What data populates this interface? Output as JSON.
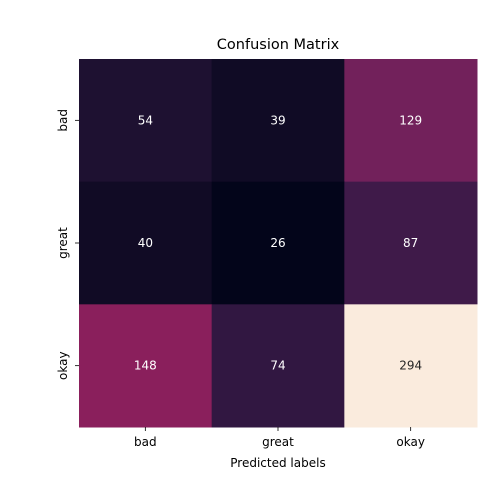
{
  "chart_data": {
    "type": "heatmap",
    "title": "Confusion Matrix",
    "xlabel": "Predicted labels",
    "ylabel": "",
    "x_categories": [
      "bad",
      "great",
      "okay"
    ],
    "y_categories": [
      "bad",
      "great",
      "okay"
    ],
    "values": [
      [
        54,
        39,
        129
      ],
      [
        40,
        26,
        87
      ],
      [
        148,
        74,
        294
      ]
    ],
    "value_range": [
      26,
      294
    ],
    "colormap": "rocket",
    "colorbar": false,
    "grid": false,
    "annotation_color": "#ffffff"
  }
}
